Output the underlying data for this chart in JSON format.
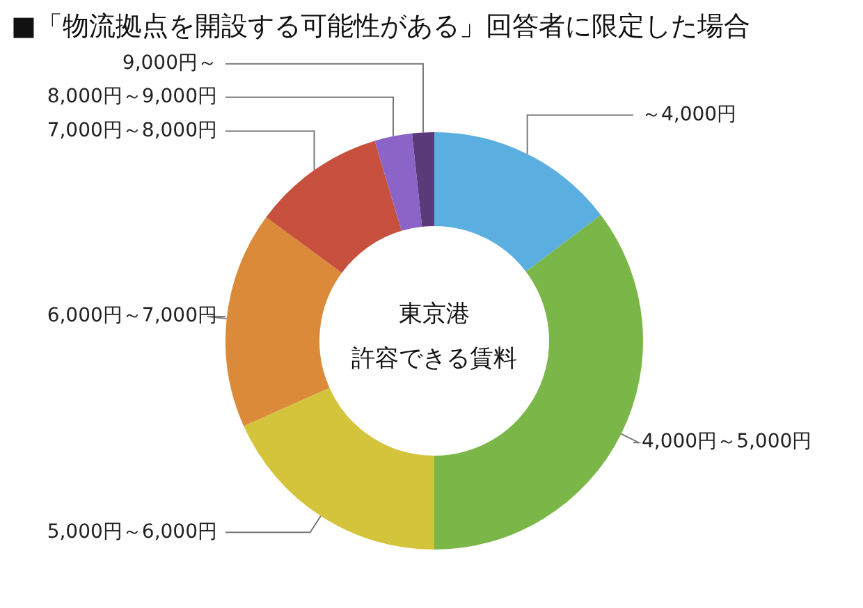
{
  "chart_data": {
    "type": "donut",
    "title": "■「物流拠点を開設する可能性がある」回答者に限定した場合",
    "categories": [
      "～4,000円",
      "4,000円～5,000円",
      "5,000円～6,000円",
      "6,000円～7,000円",
      "7,000円～8,000円",
      "8,000円～9,000円",
      "9,000円～"
    ],
    "values": [
      14.7,
      35.3,
      18.3,
      16.8,
      10.3,
      2.9,
      1.7
    ],
    "colors": [
      "#5aaee0",
      "#7ab648",
      "#d4c43c",
      "#db8a3a",
      "#c8503e",
      "#8c64c8",
      "#5a3a78"
    ],
    "annotations": [
      "東京港",
      "許容できる賃料"
    ],
    "legend": false
  }
}
